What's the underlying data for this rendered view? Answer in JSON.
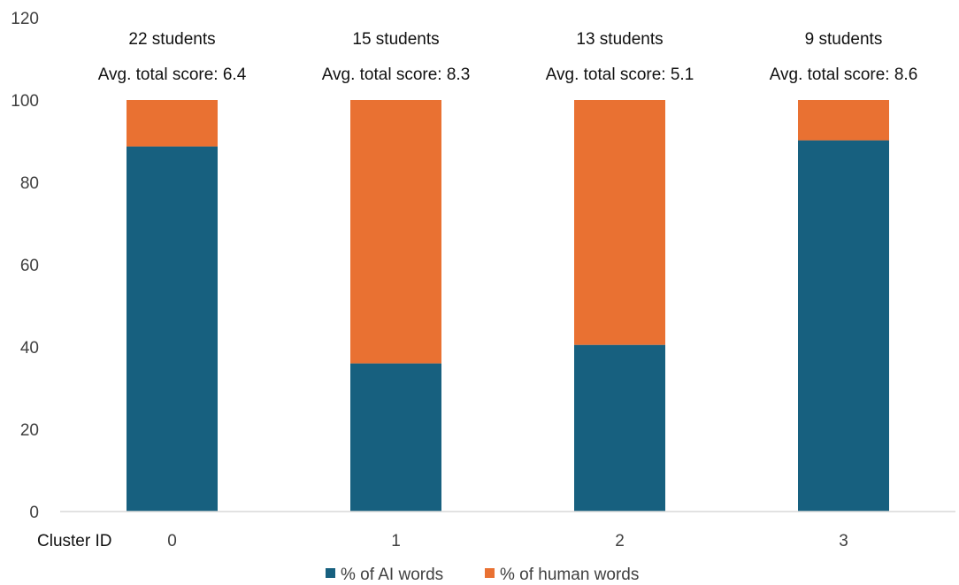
{
  "chart_data": {
    "type": "bar",
    "stacked": true,
    "categories": [
      "0",
      "1",
      "2",
      "3"
    ],
    "xlabel": "Cluster ID",
    "ylabel": "",
    "ylim": [
      0,
      120
    ],
    "yticks": [
      0,
      20,
      40,
      60,
      80,
      100,
      120
    ],
    "grid": false,
    "legend_position": "bottom",
    "series": [
      {
        "name": "% of AI words",
        "color": "#17607F",
        "values": [
          88.7,
          36.0,
          40.5,
          90.2
        ]
      },
      {
        "name": "% of human words",
        "color": "#E97132",
        "values": [
          11.3,
          64.0,
          59.5,
          9.8
        ]
      }
    ],
    "annotations": [
      {
        "students": "22 students",
        "score": "Avg. total score: 6.4"
      },
      {
        "students": "15 students",
        "score": "Avg. total score: 8.3"
      },
      {
        "students": "13 students",
        "score": "Avg. total score: 5.1"
      },
      {
        "students": "9 students",
        "score": "Avg. total score: 8.6"
      }
    ]
  }
}
